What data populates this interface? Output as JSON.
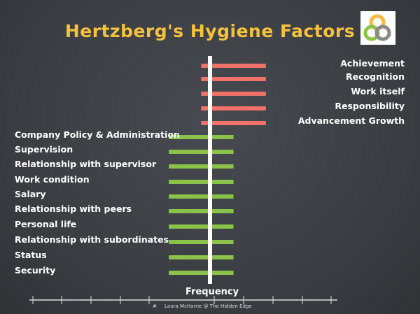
{
  "title": "Hertzberg's Hygiene Factors",
  "footer": {
    "slide_number": "#",
    "credit": "Laura McHarrie @ The Hidden Edge"
  },
  "logo": "interlocking-rings-logo",
  "chart_data": {
    "type": "bar",
    "orientation": "horizontal",
    "xlabel": "Frequency",
    "axis_ticks_labeled": false,
    "series": [
      {
        "color": "#f0726b",
        "categories": [
          "Achievement",
          "Recognition",
          "Work itself",
          "Responsibility",
          "Advancement Growth"
        ],
        "ranges": [
          [
            -0.3,
            1.9
          ],
          [
            -0.3,
            1.9
          ],
          [
            -0.3,
            1.9
          ],
          [
            -0.3,
            1.9
          ],
          [
            -0.3,
            1.9
          ]
        ],
        "label_side": "right"
      },
      {
        "color": "#8bc34a",
        "categories": [
          "Company Policy & Administration",
          "Supervision",
          "Relationship with supervisor",
          "Work condition",
          "Salary",
          "Relationship with peers",
          "Personal life",
          "Relationship with subordinates",
          "Status",
          "Security"
        ],
        "ranges": [
          [
            -1.4,
            0.8
          ],
          [
            -1.4,
            0.8
          ],
          [
            -1.4,
            0.8
          ],
          [
            -1.4,
            0.8
          ],
          [
            -1.4,
            0.8
          ],
          [
            -1.4,
            0.8
          ],
          [
            -1.4,
            0.8
          ],
          [
            -1.4,
            0.8
          ],
          [
            -1.4,
            0.8
          ],
          [
            -1.4,
            0.8
          ]
        ],
        "label_side": "left"
      }
    ]
  }
}
